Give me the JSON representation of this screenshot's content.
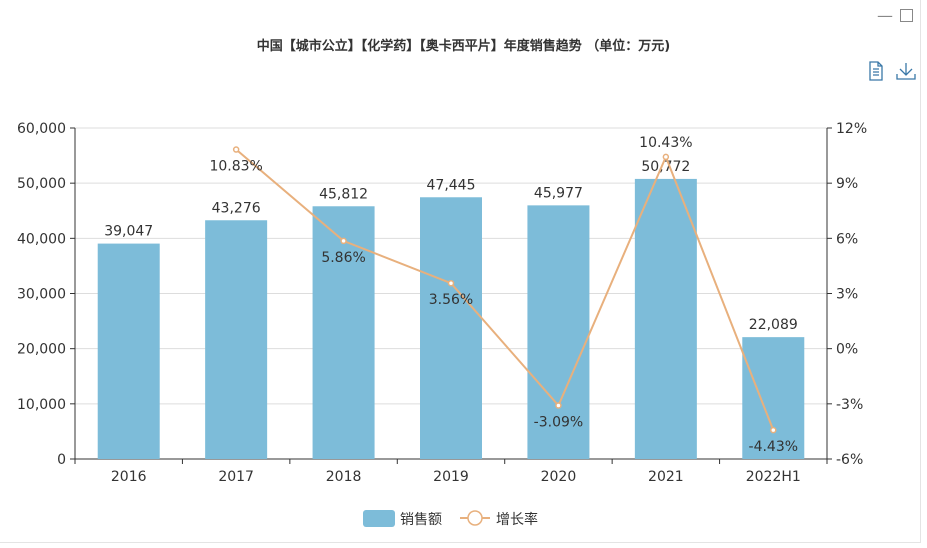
{
  "window": {
    "minimize_icon": "minimize-icon",
    "maximize_icon": "maximize-icon"
  },
  "toolbox": {
    "data_view_icon": "document-icon",
    "save_icon": "download-icon"
  },
  "chart_data": {
    "type": "bar",
    "title": "中国【城市公立】【化学药】【奥卡西平片】年度销售趋势 （单位：万元)",
    "categories": [
      "2016",
      "2017",
      "2018",
      "2019",
      "2020",
      "2021",
      "2022H1"
    ],
    "series": [
      {
        "name": "销售额",
        "type": "bar",
        "axis": "left",
        "color": "#7dbcd9",
        "values": [
          39047,
          43276,
          45812,
          47445,
          45977,
          50772,
          22089
        ],
        "labels": [
          "39,047",
          "43,276",
          "45,812",
          "47,445",
          "45,977",
          "50,772",
          "22,089"
        ]
      },
      {
        "name": "增长率",
        "type": "line",
        "axis": "right",
        "color": "#e8b07d",
        "values": [
          null,
          10.83,
          5.86,
          3.56,
          -3.09,
          10.43,
          -4.43
        ],
        "labels": [
          "",
          "10.83%",
          "5.86%",
          "3.56%",
          "-3.09%",
          "10.43%",
          "-4.43%"
        ]
      }
    ],
    "y_left": {
      "range": [
        0,
        60000
      ],
      "ticks": [
        "0",
        "10,000",
        "20,000",
        "30,000",
        "40,000",
        "50,000",
        "60,000"
      ]
    },
    "y_right": {
      "range": [
        -6,
        12
      ],
      "ticks": [
        "-6%",
        "-3%",
        "0%",
        "3%",
        "6%",
        "9%",
        "12%"
      ]
    },
    "grid": true,
    "legend": "bottom"
  }
}
